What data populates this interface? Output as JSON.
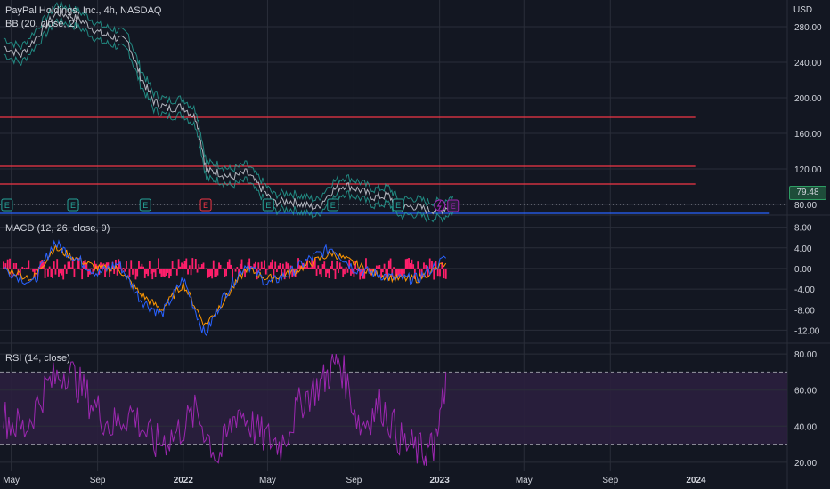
{
  "header": {
    "symbol": "PayPal Holdings, Inc., 4h, NASDAQ",
    "bb_indicator": "BB (20, close, 2)",
    "macd_indicator": "MACD (12, 26, close, 9)",
    "rsi_indicator": "RSI (14, close)",
    "currency": "USD",
    "last_price": "79.48"
  },
  "colors": {
    "background": "#131722",
    "grid": "#2a2e39",
    "text": "#d1d4dc",
    "price": "#b2b5be",
    "bb_band": "#26a69a",
    "resistance": "#f23645",
    "support": "#2962ff",
    "macd_line": "#2962ff",
    "signal_line": "#ff9800",
    "histogram": "#ff1f6b",
    "rsi_line": "#9c27b0",
    "rsi_band": "#2b1f3e",
    "earnings_badge": "#26a69a",
    "earnings_badge_miss": "#f23645",
    "next_event": "#9c27b0"
  },
  "chart_data": [
    {
      "type": "line",
      "panel": "price",
      "title": "PayPal Holdings, Inc., 4h, NASDAQ",
      "x_ticks": [
        "May",
        "Sep",
        "2022",
        "May",
        "Sep",
        "2023",
        "May",
        "Sep",
        "2024"
      ],
      "x_range": [
        "2021-04-15",
        "2024-05-10"
      ],
      "y_ticks": [
        "280.00",
        "240.00",
        "200.00",
        "160.00",
        "120.00",
        "80.00"
      ],
      "ylim": [
        70,
        310
      ],
      "grid": true,
      "series": [
        {
          "name": "",
          "x": [
            "2021-04-20",
            "2021-05-15",
            "2021-06-10",
            "2021-07-05",
            "2021-07-25",
            "2021-08-15",
            "2021-09-05",
            "2021-09-25",
            "2021-10-15",
            "2021-11-01",
            "2021-11-20",
            "2021-12-10",
            "2022-01-01",
            "2022-01-20",
            "2022-02-03",
            "2022-02-20",
            "2022-03-10",
            "2022-04-01",
            "2022-04-20",
            "2022-05-10",
            "2022-06-01",
            "2022-06-20",
            "2022-07-10",
            "2022-08-01",
            "2022-08-20",
            "2022-09-10",
            "2022-09-30",
            "2022-10-20",
            "2022-11-05",
            "2022-11-25",
            "2022-12-15",
            "2023-01-03",
            "2023-01-20"
          ],
          "y": [
            258,
            248,
            272,
            296,
            292,
            284,
            272,
            268,
            262,
            224,
            196,
            188,
            190,
            176,
            118,
            116,
            110,
            116,
            100,
            82,
            84,
            80,
            76,
            96,
            102,
            96,
            88,
            90,
            76,
            78,
            74,
            74,
            80
          ]
        }
      ],
      "hlines": [
        {
          "value": 178,
          "color": "#f23645"
        },
        {
          "value": 123,
          "color": "#f23645"
        },
        {
          "value": 103,
          "color": "#f23645"
        },
        {
          "value": 70,
          "color": "#2962ff"
        }
      ],
      "last_value": 79.48
    },
    {
      "type": "line",
      "panel": "macd",
      "title": "MACD (12, 26, close, 9)",
      "y_ticks": [
        "8.00",
        "4.00",
        "0.00",
        "-4.00",
        "-8.00",
        "-12.00"
      ],
      "ylim": [
        -14,
        10
      ],
      "series": [
        {
          "name": "",
          "x": [
            "2021-04-20",
            "2021-06-01",
            "2021-07-01",
            "2021-08-01",
            "2021-09-01",
            "2021-10-01",
            "2021-11-01",
            "2021-12-01",
            "2022-01-01",
            "2022-02-01",
            "2022-03-01",
            "2022-04-01",
            "2022-05-01",
            "2022-06-01",
            "2022-07-01",
            "2022-08-01",
            "2022-09-01",
            "2022-10-01",
            "2022-11-01",
            "2022-12-01",
            "2023-01-10"
          ],
          "y": [
            0,
            -3,
            5,
            2,
            -1,
            1,
            -6,
            -9,
            -2,
            -13,
            -5,
            1,
            -3,
            -1,
            2,
            4,
            0,
            -1,
            -2,
            -2,
            2
          ]
        },
        {
          "name": "",
          "x": [
            "2021-04-20",
            "2021-06-01",
            "2021-07-01",
            "2021-08-01",
            "2021-09-01",
            "2021-10-01",
            "2021-11-01",
            "2021-12-01",
            "2022-01-01",
            "2022-02-01",
            "2022-03-01",
            "2022-04-01",
            "2022-05-01",
            "2022-06-01",
            "2022-07-01",
            "2022-08-01",
            "2022-09-01",
            "2022-10-01",
            "2022-11-01",
            "2022-12-01",
            "2023-01-10"
          ],
          "y": [
            0,
            -2,
            4,
            2,
            0,
            0,
            -5,
            -8,
            -3,
            -11,
            -6,
            0,
            -2,
            -1,
            1,
            3,
            1,
            -1,
            -2,
            -2,
            1
          ]
        }
      ]
    },
    {
      "type": "line",
      "panel": "rsi",
      "title": "RSI (14, close)",
      "y_ticks": [
        "80.00",
        "60.00",
        "40.00",
        "20.00"
      ],
      "ylim": [
        15,
        85
      ],
      "bands": [
        30,
        70
      ],
      "series": [
        {
          "name": "",
          "x": [
            "2021-04-20",
            "2021-05-20",
            "2021-06-20",
            "2021-07-20",
            "2021-08-20",
            "2021-09-20",
            "2021-10-20",
            "2021-11-20",
            "2021-12-20",
            "2022-01-20",
            "2022-02-20",
            "2022-03-20",
            "2022-04-20",
            "2022-05-20",
            "2022-06-20",
            "2022-07-20",
            "2022-08-10",
            "2022-09-10",
            "2022-10-10",
            "2022-11-10",
            "2022-12-10",
            "2022-12-28",
            "2023-01-10"
          ],
          "y": [
            45,
            38,
            62,
            72,
            55,
            40,
            48,
            30,
            35,
            48,
            22,
            50,
            35,
            30,
            55,
            65,
            78,
            40,
            52,
            30,
            25,
            30,
            70
          ]
        }
      ]
    }
  ]
}
